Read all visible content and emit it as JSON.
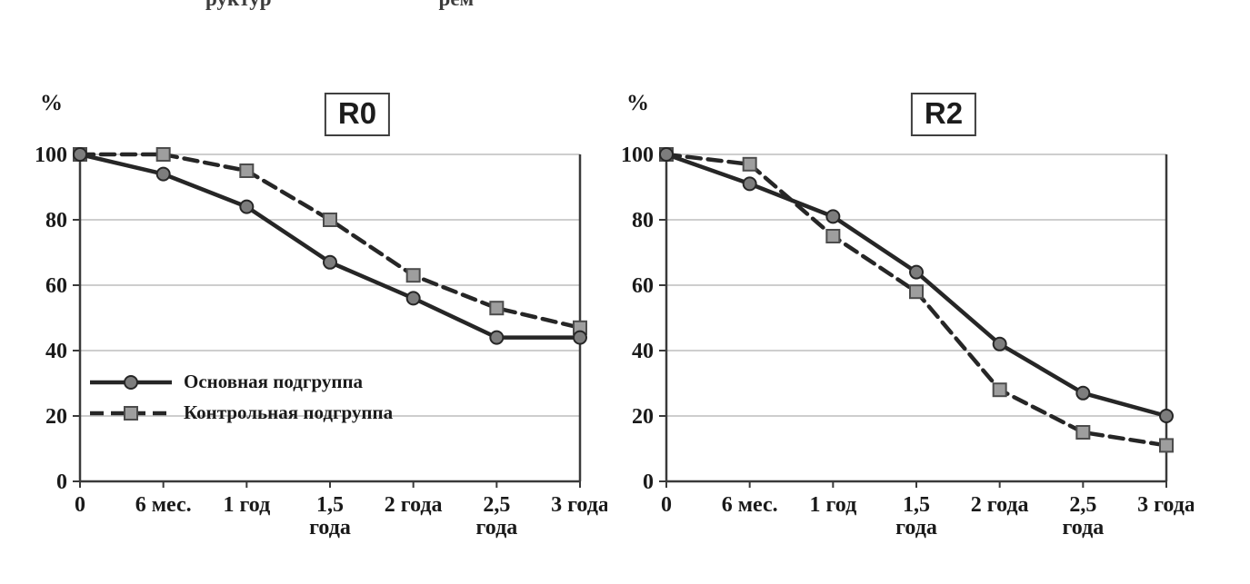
{
  "page": {
    "background": "#ffffff",
    "cropped_caption_fragment": "руктур                                рем"
  },
  "axis": {
    "y_ticks": [
      0,
      20,
      40,
      60,
      80,
      100
    ],
    "x_ticklabels": [
      [
        "0"
      ],
      [
        "6 мес."
      ],
      [
        "1 год"
      ],
      [
        "1,5",
        "года"
      ],
      [
        "2 года"
      ],
      [
        "2,5",
        "года"
      ],
      [
        "3 года"
      ]
    ]
  },
  "colors": {
    "line": "#262626",
    "circle_fill": "#7d7d7d",
    "square_fill": "#9e9e9e",
    "square_stroke": "#4c4c4c",
    "grid": "#bdbdbd",
    "axis": "#3a3a3a",
    "text": "#1a1a1a"
  },
  "chart_data": [
    {
      "type": "line",
      "title": "R0",
      "ylabel": "%",
      "ylim": [
        0,
        100
      ],
      "grid": true,
      "legend_position": "inside-lower-left",
      "categories": [
        "0",
        "6 мес.",
        "1 год",
        "1,5 года",
        "2 года",
        "2,5 года",
        "3 года"
      ],
      "series": [
        {
          "name": "Основная подгруппа",
          "marker": "circle",
          "line_style": "solid",
          "values": [
            100,
            94,
            84,
            67,
            56,
            44,
            44
          ]
        },
        {
          "name": "Контрольная подгруппа",
          "marker": "square",
          "line_style": "dashed",
          "values": [
            100,
            100,
            95,
            80,
            63,
            53,
            47
          ]
        }
      ]
    },
    {
      "type": "line",
      "title": "R2",
      "ylabel": "%",
      "ylim": [
        0,
        100
      ],
      "grid": true,
      "legend_position": "none",
      "categories": [
        "0",
        "6 мес.",
        "1 год",
        "1,5 года",
        "2 года",
        "2,5 года",
        "3 года"
      ],
      "series": [
        {
          "name": "Основная подгруппа",
          "marker": "circle",
          "line_style": "solid",
          "values": [
            100,
            91,
            81,
            64,
            42,
            27,
            20
          ]
        },
        {
          "name": "Контрольная подгруппа",
          "marker": "square",
          "line_style": "dashed",
          "values": [
            100,
            97,
            75,
            58,
            28,
            15,
            11
          ]
        }
      ]
    }
  ]
}
